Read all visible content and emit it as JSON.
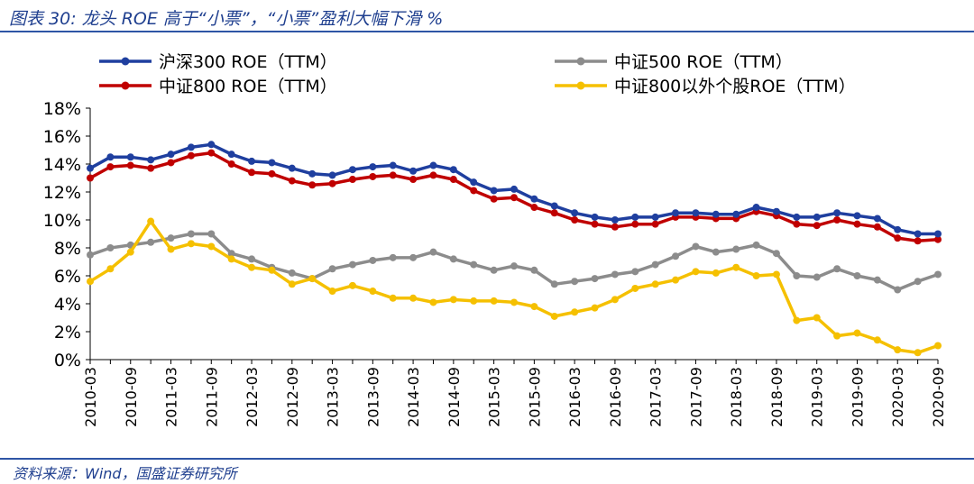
{
  "header": {
    "title": "图表 30: 龙头 ROE 高于“小票”，“小票”盈利大幅下滑 %"
  },
  "footer": {
    "source": "资料来源：Wind，国盛证券研究所"
  },
  "chart_data": {
    "type": "line",
    "x": [
      "2010-03",
      "2010-06",
      "2010-09",
      "2010-12",
      "2011-03",
      "2011-06",
      "2011-09",
      "2011-12",
      "2012-03",
      "2012-06",
      "2012-09",
      "2012-12",
      "2013-03",
      "2013-06",
      "2013-09",
      "2013-12",
      "2014-03",
      "2014-06",
      "2014-09",
      "2014-12",
      "2015-03",
      "2015-06",
      "2015-09",
      "2015-12",
      "2016-03",
      "2016-06",
      "2016-09",
      "2016-12",
      "2017-03",
      "2017-06",
      "2017-09",
      "2017-12",
      "2018-03",
      "2018-06",
      "2018-09",
      "2018-12",
      "2019-03",
      "2019-06",
      "2019-09",
      "2019-12",
      "2020-03",
      "2020-06",
      "2020-09"
    ],
    "x_tick_labels": [
      "2010-03",
      "2010-09",
      "2011-03",
      "2011-09",
      "2012-03",
      "2012-09",
      "2013-03",
      "2013-09",
      "2014-03",
      "2014-09",
      "2015-03",
      "2015-09",
      "2016-03",
      "2016-09",
      "2017-03",
      "2017-09",
      "2018-03",
      "2018-09",
      "2019-03",
      "2019-09",
      "2020-03",
      "2020-09"
    ],
    "y_ticks": [
      "0%",
      "2%",
      "4%",
      "6%",
      "8%",
      "10%",
      "12%",
      "14%",
      "16%",
      "18%"
    ],
    "ylim": [
      0,
      18
    ],
    "legend_position": "top",
    "series": [
      {
        "name": "沪深300 ROE（TTM）",
        "color": "#1f3f9f",
        "values": [
          13.7,
          14.5,
          14.5,
          14.3,
          14.7,
          15.2,
          15.4,
          14.7,
          14.2,
          14.1,
          13.7,
          13.3,
          13.2,
          13.6,
          13.8,
          13.9,
          13.5,
          13.9,
          13.6,
          12.7,
          12.1,
          12.2,
          11.5,
          11.0,
          10.5,
          10.2,
          10.0,
          10.2,
          10.2,
          10.5,
          10.5,
          10.4,
          10.4,
          10.9,
          10.6,
          10.2,
          10.2,
          10.5,
          10.3,
          10.1,
          9.3,
          9.0,
          9.0
        ]
      },
      {
        "name": "中证500 ROE（TTM）",
        "color": "#8c8c8c",
        "values": [
          7.5,
          8.0,
          8.2,
          8.4,
          8.7,
          9.0,
          9.0,
          7.6,
          7.2,
          6.6,
          6.2,
          5.8,
          6.5,
          6.8,
          7.1,
          7.3,
          7.3,
          7.7,
          7.2,
          6.8,
          6.4,
          6.7,
          6.4,
          5.4,
          5.6,
          5.8,
          6.1,
          6.3,
          6.8,
          7.4,
          8.1,
          7.7,
          7.9,
          8.2,
          7.6,
          6.0,
          5.9,
          6.5,
          6.0,
          5.7,
          5.0,
          5.6,
          6.1
        ]
      },
      {
        "name": "中证800 ROE（TTM）",
        "color": "#c00000",
        "values": [
          13.0,
          13.8,
          13.9,
          13.7,
          14.1,
          14.6,
          14.8,
          14.0,
          13.4,
          13.3,
          12.8,
          12.5,
          12.6,
          12.9,
          13.1,
          13.2,
          12.9,
          13.2,
          12.9,
          12.1,
          11.5,
          11.6,
          10.9,
          10.5,
          10.0,
          9.7,
          9.5,
          9.7,
          9.7,
          10.2,
          10.2,
          10.1,
          10.1,
          10.6,
          10.3,
          9.7,
          9.6,
          10.0,
          9.7,
          9.5,
          8.7,
          8.5,
          8.6
        ]
      },
      {
        "name": "中证800以外个股ROE（TTM）",
        "color": "#f5c000",
        "values": [
          5.6,
          6.5,
          7.7,
          9.9,
          7.9,
          8.3,
          8.1,
          7.2,
          6.6,
          6.4,
          5.4,
          5.8,
          4.9,
          5.3,
          4.9,
          4.4,
          4.4,
          4.1,
          4.3,
          4.2,
          4.2,
          4.1,
          3.8,
          3.1,
          3.4,
          3.7,
          4.3,
          5.1,
          5.4,
          5.7,
          6.3,
          6.2,
          6.6,
          6.0,
          6.1,
          2.8,
          3.0,
          1.7,
          1.9,
          1.4,
          0.7,
          0.5,
          1.0
        ]
      }
    ]
  }
}
